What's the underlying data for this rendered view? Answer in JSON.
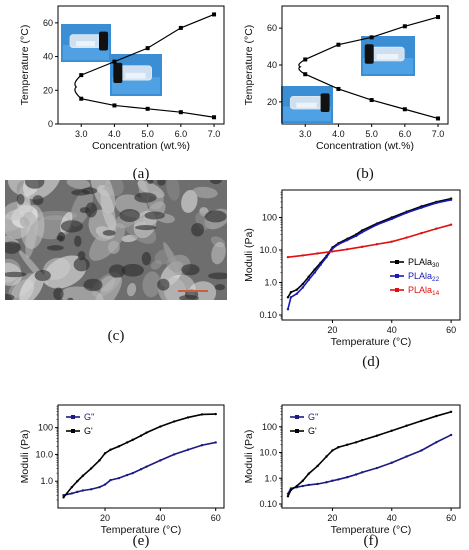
{
  "chart_data": [
    {
      "id": "a",
      "type": "line",
      "panel_label": "(a)",
      "xlabel": "Concentration (wt.%)",
      "ylabel": "Temperature (°C)",
      "xlim": [
        2.3,
        7.3
      ],
      "ylim": [
        0,
        70
      ],
      "xticks": [
        3.0,
        4.0,
        5.0,
        6.0,
        7.0
      ],
      "xtick_labels": [
        "3.0",
        "4.0",
        "5.0",
        "6.0",
        "7.0"
      ],
      "yticks": [
        0,
        20,
        40,
        60
      ],
      "ytick_labels": [
        "0",
        "20",
        "40",
        "60"
      ],
      "series": [
        {
          "color": "#000000",
          "curve": "phase-boundary",
          "points": [
            [
              3.0,
              29
            ],
            [
              3.0,
              15
            ],
            [
              4.0,
              37
            ],
            [
              4.0,
              11
            ],
            [
              5.0,
              45
            ],
            [
              5.0,
              9
            ],
            [
              6.0,
              57
            ],
            [
              6.0,
              7
            ],
            [
              7.0,
              65
            ],
            [
              7.0,
              4
            ]
          ]
        }
      ],
      "insets": [
        "vial-gel",
        "vial-sol"
      ]
    },
    {
      "id": "b",
      "type": "line",
      "panel_label": "(b)",
      "xlabel": "Concentration (wt.%)",
      "ylabel": "Temperature (°C)",
      "xlim": [
        2.3,
        7.3
      ],
      "ylim": [
        8,
        72
      ],
      "xticks": [
        3.0,
        4.0,
        5.0,
        6.0,
        7.0
      ],
      "xtick_labels": [
        "3.0",
        "4.0",
        "5.0",
        "6.0",
        "7.0"
      ],
      "yticks": [
        20,
        40,
        60
      ],
      "ytick_labels": [
        "20",
        "40",
        "60"
      ],
      "series": [
        {
          "color": "#000000",
          "curve": "phase-boundary",
          "points": [
            [
              3.0,
              43
            ],
            [
              3.0,
              35
            ],
            [
              4.0,
              51
            ],
            [
              4.0,
              27
            ],
            [
              5.0,
              55
            ],
            [
              5.0,
              21
            ],
            [
              6.0,
              61
            ],
            [
              6.0,
              16
            ],
            [
              7.0,
              66
            ],
            [
              7.0,
              11
            ]
          ]
        }
      ],
      "insets": [
        "vial-sol",
        "vial-gel"
      ]
    },
    {
      "id": "d",
      "type": "line",
      "panel_label": "(d)",
      "xlabel": "Temperature (°C)",
      "ylabel": "Moduli (Pa)",
      "yscale": "log",
      "xlim": [
        3,
        63
      ],
      "ylim": [
        0.07,
        700
      ],
      "xticks": [
        20,
        40,
        60
      ],
      "xtick_labels": [
        "20",
        "40",
        "60"
      ],
      "yticks": [
        0.1,
        1,
        10,
        100
      ],
      "ytick_labels": [
        "0.10",
        "1.0",
        "10.0",
        "100"
      ],
      "legend": "right",
      "series": [
        {
          "name": "PLAla30",
          "name_main": "PLAla",
          "name_sub": "30",
          "color": "#000000",
          "x": [
            5,
            6,
            8,
            10,
            12,
            14,
            16,
            18,
            20,
            22,
            25,
            28,
            30,
            35,
            40,
            45,
            50,
            55,
            60
          ],
          "y": [
            0.35,
            0.5,
            0.6,
            0.9,
            1.5,
            2.5,
            4,
            6.5,
            12,
            16,
            22,
            30,
            40,
            65,
            100,
            150,
            220,
            300,
            380
          ]
        },
        {
          "name": "PLAla22",
          "name_main": "PLAla",
          "name_sub": "22",
          "color": "#1a1ab4",
          "x": [
            5,
            6,
            8,
            10,
            12,
            14,
            16,
            18,
            20,
            22,
            25,
            28,
            30,
            35,
            40,
            45,
            50,
            55,
            60
          ],
          "y": [
            0.15,
            0.35,
            0.45,
            0.7,
            1.2,
            2,
            3.5,
            6,
            11,
            15,
            20,
            27,
            35,
            60,
            90,
            140,
            200,
            280,
            350
          ]
        },
        {
          "name": "PLAla14",
          "name_main": "PLAla",
          "name_sub": "14",
          "color": "#e01010",
          "x": [
            5,
            10,
            15,
            20,
            25,
            30,
            35,
            40,
            45,
            50,
            55,
            60
          ],
          "y": [
            6,
            6.8,
            7.8,
            9,
            10.5,
            12.5,
            15,
            18,
            24,
            33,
            45,
            60
          ]
        }
      ]
    },
    {
      "id": "e",
      "type": "line",
      "panel_label": "(e)",
      "xlabel": "Temperature (°C)",
      "ylabel": "Moduli (Pa)",
      "yscale": "log",
      "xlim": [
        3,
        63
      ],
      "ylim": [
        0.1,
        700
      ],
      "xticks": [
        20,
        40,
        60
      ],
      "xtick_labels": [
        "20",
        "40",
        "60"
      ],
      "yticks": [
        1,
        10,
        100
      ],
      "ytick_labels": [
        "1.0",
        "10.0",
        "100"
      ],
      "legend": "top-left",
      "series": [
        {
          "name": "G''",
          "color": "#1a1a80",
          "x": [
            5,
            8,
            10,
            12,
            15,
            18,
            20,
            22,
            25,
            28,
            30,
            33,
            35,
            40,
            45,
            50,
            55,
            60
          ],
          "y": [
            0.3,
            0.35,
            0.4,
            0.45,
            0.5,
            0.6,
            0.75,
            1.1,
            1.3,
            1.7,
            2,
            2.8,
            3.5,
            6,
            10,
            15,
            22,
            28
          ]
        },
        {
          "name": "G'",
          "color": "#000000",
          "x": [
            5,
            8,
            10,
            12,
            15,
            18,
            20,
            22,
            25,
            28,
            30,
            33,
            35,
            40,
            45,
            50,
            55,
            60
          ],
          "y": [
            0.25,
            0.6,
            1,
            1.6,
            3,
            6,
            11,
            15,
            20,
            28,
            35,
            50,
            65,
            110,
            170,
            240,
            310,
            320
          ]
        }
      ]
    },
    {
      "id": "f",
      "type": "line",
      "panel_label": "(f)",
      "xlabel": "Temperature (°C)",
      "ylabel": "Moduli (Pa)",
      "yscale": "log",
      "xlim": [
        3,
        63
      ],
      "ylim": [
        0.07,
        700
      ],
      "xticks": [
        20,
        40,
        60
      ],
      "xtick_labels": [
        "20",
        "40",
        "60"
      ],
      "yticks": [
        0.1,
        1,
        10,
        100
      ],
      "ytick_labels": [
        "0.10",
        "1.0",
        "10.0",
        "100"
      ],
      "legend": "top-left",
      "series": [
        {
          "name": "G''",
          "color": "#1a1a80",
          "x": [
            5,
            6,
            8,
            10,
            12,
            15,
            18,
            20,
            22,
            25,
            28,
            30,
            35,
            40,
            45,
            50,
            55,
            60
          ],
          "y": [
            0.25,
            0.4,
            0.45,
            0.5,
            0.55,
            0.6,
            0.7,
            0.8,
            0.9,
            1.1,
            1.4,
            1.7,
            2.5,
            4,
            7,
            12,
            25,
            48
          ]
        },
        {
          "name": "G'",
          "color": "#000000",
          "x": [
            5,
            6,
            8,
            10,
            12,
            15,
            18,
            20,
            22,
            25,
            28,
            30,
            35,
            40,
            45,
            50,
            55,
            60
          ],
          "y": [
            0.2,
            0.35,
            0.5,
            0.8,
            1.5,
            3,
            7,
            12,
            16,
            20,
            25,
            30,
            45,
            70,
            110,
            170,
            260,
            380
          ]
        }
      ]
    }
  ],
  "sem_image": {
    "panel_label": "(c)",
    "subject": "porous-network-micrograph"
  }
}
